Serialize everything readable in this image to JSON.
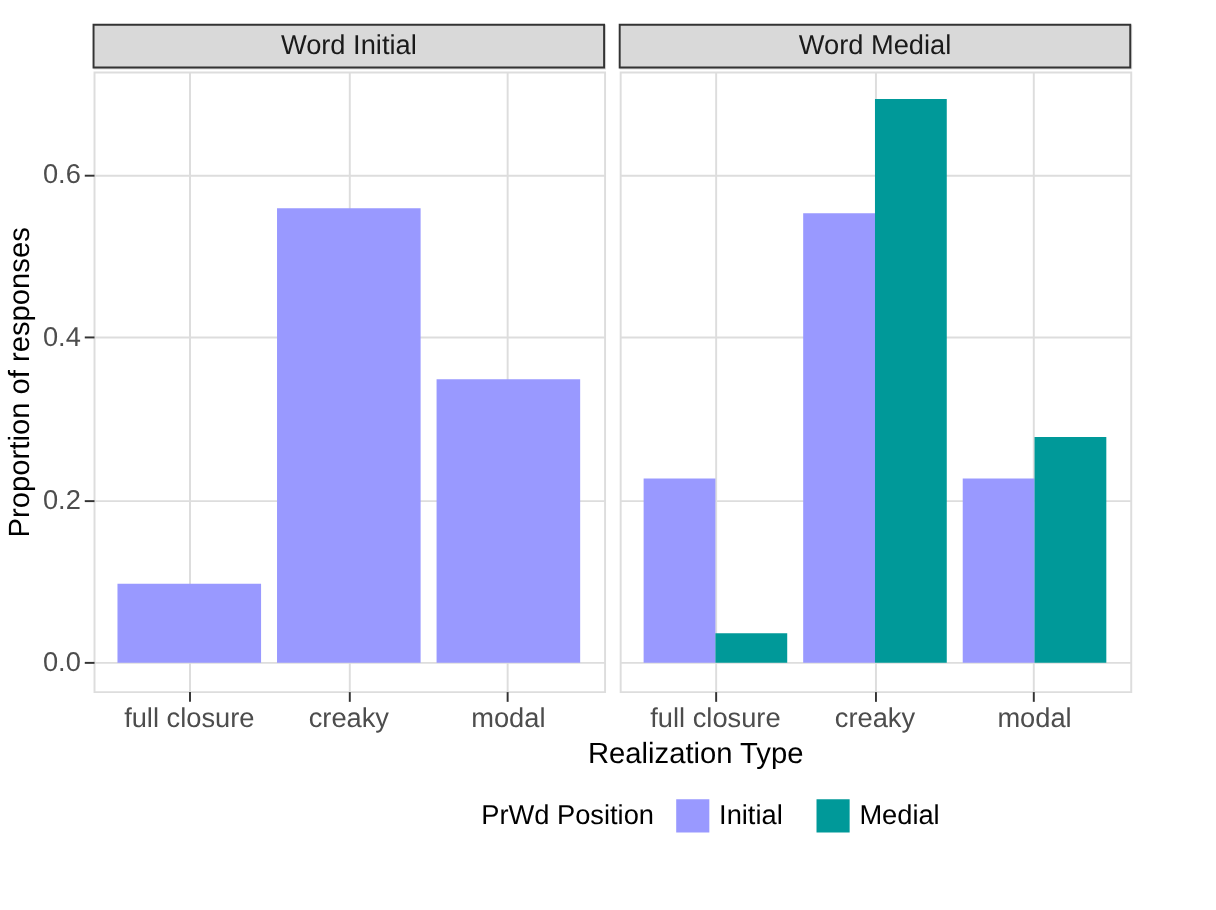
{
  "chart_data": [
    {
      "type": "bar",
      "title": "Word Initial",
      "ylabel": "Proportion of responses",
      "xlabel": "Realization Type",
      "categories": [
        "full closure",
        "creaky",
        "modal"
      ],
      "series": [
        {
          "color": "#9999ff",
          "values": [
            0.097,
            0.558,
            0.348
          ]
        }
      ],
      "ylim": [
        -0.035,
        0.726
      ],
      "yticks": [
        {
          "value": 0,
          "label": "0.0"
        },
        {
          "value": 0.2,
          "label": "0.2"
        },
        {
          "value": 0.4,
          "label": "0.4"
        },
        {
          "value": 0.6,
          "label": "0.6"
        }
      ],
      "grid": true
    },
    {
      "type": "bar",
      "title": "Word Medial",
      "categories": [
        "full closure",
        "creaky",
        "modal"
      ],
      "series": [
        {
          "name": "Initial",
          "color": "#9999ff",
          "values": [
            0.226,
            0.552,
            0.226
          ]
        },
        {
          "name": "Medial",
          "color": "#009999",
          "values": [
            0.036,
            0.692,
            0.277
          ]
        }
      ],
      "ylim": [
        -0.035,
        0.726
      ],
      "yticks": [
        0,
        0.2,
        0.4,
        0.6
      ],
      "grid": true,
      "tick_labels": "x",
      "legend": "bottom",
      "legend_title": "PrWd Position"
    }
  ]
}
